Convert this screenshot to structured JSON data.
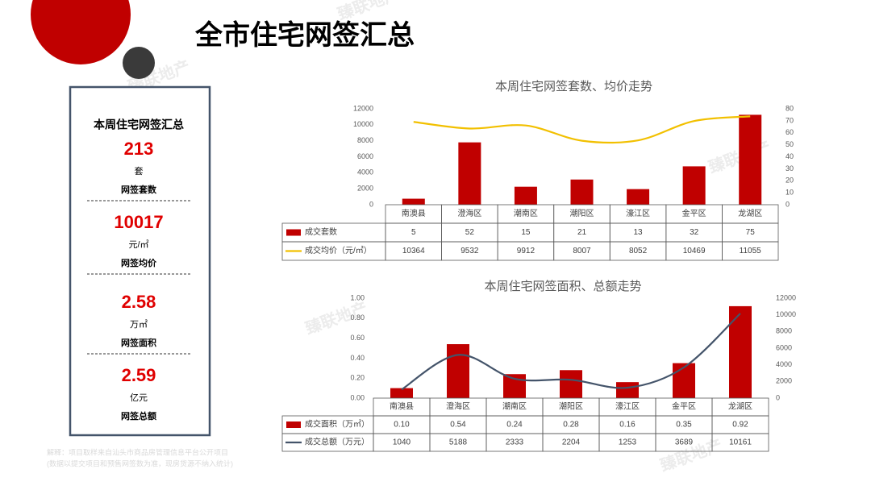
{
  "header": {
    "title": "全市住宅网签汇总"
  },
  "summary": {
    "heading": "本周住宅网签汇总",
    "items": [
      {
        "value": "213",
        "unit": "套",
        "label": "网签套数"
      },
      {
        "value": "10017",
        "unit": "元/㎡",
        "label": "网签均价"
      },
      {
        "value": "2.58",
        "unit": "万㎡",
        "label": "网签面积"
      },
      {
        "value": "2.59",
        "unit": "亿元",
        "label": "网签总额"
      }
    ]
  },
  "footnote": [
    "解释：项目取样来自汕头市商品房管理信息平台公开项目",
    "(数据以提交项目和预售网签数为准，现房货源不纳入统计)"
  ],
  "watermark": "臻联地产",
  "chart_data": [
    {
      "type": "combo",
      "title": "本周住宅网签套数、均价走势",
      "categories": [
        "南澳县",
        "澄海区",
        "潮南区",
        "潮阳区",
        "濠江区",
        "金平区",
        "龙湖区"
      ],
      "series": [
        {
          "name": "成交套数",
          "type": "bar",
          "axis": "y2",
          "color": "#c00000",
          "values": [
            5,
            52,
            15,
            21,
            13,
            32,
            75
          ]
        },
        {
          "name": "成交均价（元/㎡）",
          "type": "line",
          "color": "#f2c000",
          "values": [
            10364,
            9532,
            9912,
            8007,
            8052,
            10469,
            11055
          ]
        }
      ],
      "ylim": [
        0,
        12000
      ],
      "yticks": [
        0,
        2000,
        4000,
        6000,
        8000,
        10000,
        12000
      ],
      "y2lim": [
        0,
        80
      ],
      "y2ticks": [
        0,
        10,
        20,
        30,
        40,
        50,
        60,
        70,
        80
      ]
    },
    {
      "type": "combo",
      "title": "本周住宅网签面积、总额走势",
      "categories": [
        "南澳县",
        "澄海区",
        "潮南区",
        "潮阳区",
        "濠江区",
        "金平区",
        "龙湖区"
      ],
      "series": [
        {
          "name": "成交面积（万㎡）",
          "type": "bar",
          "color": "#c00000",
          "values": [
            0.1,
            0.54,
            0.24,
            0.28,
            0.16,
            0.35,
            0.92
          ],
          "value_labels": [
            "0.10",
            "0.54",
            "0.24",
            "0.28",
            "0.16",
            "0.35",
            "0.92"
          ]
        },
        {
          "name": "成交总额（万元）",
          "type": "line",
          "axis": "y2",
          "color": "#44546a",
          "values": [
            1040,
            5188,
            2333,
            2204,
            1253,
            3689,
            10161
          ]
        }
      ],
      "ylim": [
        0,
        1
      ],
      "yticks": [
        {
          "value": 0,
          "label": "0.00"
        },
        {
          "value": 0.2,
          "label": "0.20"
        },
        {
          "value": 0.4,
          "label": "0.40"
        },
        {
          "value": 0.6,
          "label": "0.60"
        },
        {
          "value": 0.8,
          "label": "0.80"
        },
        {
          "value": 1,
          "label": "1.00"
        }
      ],
      "y2lim": [
        0,
        12000
      ],
      "y2ticks": [
        0,
        2000,
        4000,
        6000,
        8000,
        10000,
        12000
      ]
    }
  ]
}
